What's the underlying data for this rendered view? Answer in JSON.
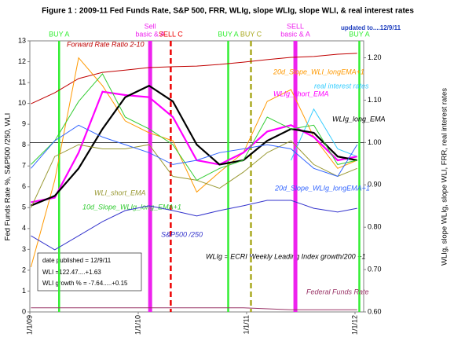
{
  "chart_data": {
    "type": "line",
    "title": "Figure 1 : 2009-11  Fed Funds Rate,  S&P 500,  FRR,  WLIg,  slope WLIg,  slope WLI, & real interest rates",
    "subtitle": "updated to....12/9/11",
    "y_label": "Fed Funds Rate %,   S&P500 /250,    WLI",
    "y2_label": "WLIg,  slope WLIg,  slope WLI, FRR, real interest rates",
    "annotations": [
      "date published =  12/9/11",
      "WLI =122.47....+1.63",
      "WLI growth % = -7.64.....+0.15",
      "WLIg = ECRI Weekly Leading Index growth/200 +1"
    ],
    "x": [
      2009.01,
      2009.23,
      2009.45,
      2009.67,
      2009.88,
      2010.1,
      2010.32,
      2010.54,
      2010.75,
      2010.97,
      2011.19,
      2011.41,
      2011.62,
      2011.84,
      2012.02
    ],
    "xlim": [
      2009,
      2012.08
    ],
    "xticks": [
      {
        "value": 2009,
        "label": "1/1/09"
      },
      {
        "value": 2010,
        "label": "1/1/10"
      },
      {
        "value": 2011,
        "label": "1/1/11"
      },
      {
        "value": 2012,
        "label": "1/1/12"
      }
    ],
    "ylim": [
      0,
      13
    ],
    "yticks": [
      0,
      1,
      2,
      3,
      4,
      5,
      6,
      7,
      8,
      9,
      10,
      11,
      12,
      13
    ],
    "y2lim": [
      0.6,
      1.24
    ],
    "y2ticks": [
      {
        "value": 0.6,
        "label": "0.60"
      },
      {
        "value": 0.7,
        "label": "0.70"
      },
      {
        "value": 0.8,
        "label": "0.80"
      },
      {
        "value": 0.9,
        "label": "0.90"
      },
      {
        "value": 1.0,
        "label": "1.00"
      },
      {
        "value": 1.1,
        "label": "1.10"
      },
      {
        "value": 1.2,
        "label": "1.20"
      }
    ],
    "reference_line": {
      "axis": "y2",
      "value": 1.0,
      "color": "#000000"
    },
    "series": [
      {
        "name": "Forward Rate Ratio 2-10",
        "color": "#c00000",
        "values": [
          9.98,
          10.51,
          11.19,
          11.49,
          11.6,
          11.72,
          11.76,
          11.79,
          11.87,
          11.98,
          12.1,
          12.21,
          12.25,
          12.36,
          12.4
        ]
      },
      {
        "name": "20d_Slope_WLI_longEMA+1",
        "color": "#ff9900",
        "axis": "y2",
        "values": [
          0.706,
          0.911,
          1.2,
          1.134,
          1.051,
          1.023,
          1.004,
          0.883,
          0.93,
          0.976,
          1.097,
          1.125,
          1.013,
          0.939,
          0.958
        ]
      },
      {
        "name": "real interest rates",
        "color": "#33ccff",
        "axis": "y2",
        "values": [
          null,
          null,
          null,
          null,
          null,
          null,
          null,
          null,
          null,
          null,
          null,
          0.958,
          1.079,
          0.985,
          0.967
        ]
      },
      {
        "name": "WLIg_short_EMA",
        "color": "#ff00ff",
        "axis": "y2",
        "values": [
          0.859,
          0.87,
          0.976,
          1.12,
          1.112,
          1.107,
          1.06,
          0.958,
          0.948,
          0.976,
          1.026,
          1.041,
          1.013,
          0.958,
          0.967
        ]
      },
      {
        "name": "WLIg_long_EMA",
        "color": "#000000",
        "axis": "y2",
        "values": [
          0.851,
          0.874,
          0.939,
          1.032,
          1.107,
          1.134,
          1.097,
          0.995,
          0.948,
          0.958,
          1.004,
          1.032,
          1.023,
          0.967,
          0.958
        ]
      },
      {
        "name": "WLI_short_EMA",
        "color": "#999933",
        "axis": "y2",
        "values": [
          0.846,
          0.967,
          0.995,
          0.985,
          0.985,
          0.995,
          0.92,
          0.911,
          0.892,
          0.93,
          0.976,
          1.004,
          0.948,
          0.92,
          0.939
        ]
      },
      {
        "name": "10d_Slope_WLIg_long_EMA+1",
        "color": "#33cc33",
        "axis": "y2",
        "values": [
          0.948,
          1.004,
          1.097,
          1.162,
          1.06,
          1.032,
          0.995,
          0.911,
          0.939,
          0.958,
          1.06,
          1.032,
          1.041,
          0.948,
          0.958
        ]
      },
      {
        "name": "20d_Slope_WLIg_longEMA+1",
        "color": "#3366ff",
        "axis": "y2",
        "values": [
          0.939,
          1.004,
          1.041,
          1.013,
          0.995,
          0.976,
          0.948,
          0.958,
          0.976,
          0.985,
          0.995,
          0.985,
          0.939,
          0.92,
          0.995
        ]
      },
      {
        "name": "S&P500 /250",
        "color": "#3333cc",
        "values": [
          3.65,
          2.98,
          3.65,
          4.33,
          4.86,
          5.09,
          4.86,
          4.6,
          4.86,
          5.09,
          5.35,
          5.35,
          4.97,
          4.79,
          4.97
        ]
      },
      {
        "name": "Federal Funds Rate",
        "color": "#993366",
        "values": [
          0.2,
          0.2,
          0.2,
          0.2,
          0.2,
          0.2,
          0.2,
          0.2,
          0.2,
          0.2,
          0.15,
          0.1,
          0.1,
          0.1,
          0.1
        ]
      }
    ],
    "signals": [
      {
        "label": [
          "BUY A"
        ],
        "x": 2009.27,
        "color": "#33ee33",
        "line_style": "solid",
        "weight": "normal"
      },
      {
        "label": [
          "Sell",
          "basic & A"
        ],
        "x": 2010.11,
        "color": "#ee22ee",
        "line_style": "solid",
        "weight": "heavy"
      },
      {
        "label": [
          "SELL C"
        ],
        "x": 2010.3,
        "color": "#ee0000",
        "line_style": "dashed",
        "weight": "normal"
      },
      {
        "label": [
          "BUY A"
        ],
        "x": 2010.83,
        "color": "#33ee33",
        "line_style": "solid",
        "weight": "normal"
      },
      {
        "label": [
          "BUY C"
        ],
        "x": 2011.04,
        "color": "#aaaa22",
        "line_style": "dashed",
        "weight": "normal"
      },
      {
        "label": [
          "SELL",
          "basic & A"
        ],
        "x": 2011.45,
        "color": "#ee22ee",
        "line_style": "solid",
        "weight": "heavy"
      },
      {
        "label": [
          "BUY A"
        ],
        "x": 2012.04,
        "color": "#33ee33",
        "line_style": "solid",
        "weight": "normal"
      }
    ]
  }
}
